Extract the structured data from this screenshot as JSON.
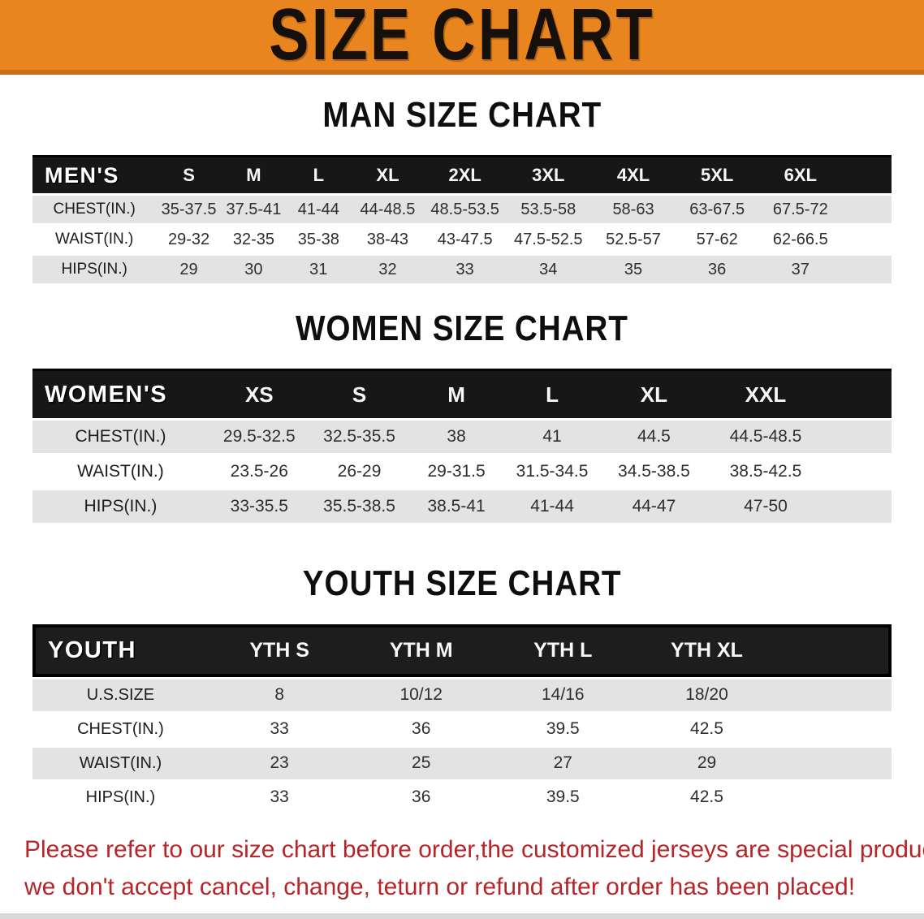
{
  "banner": {
    "title": "SIZE CHART",
    "bg_color": "#E9851F",
    "text_color": "#16100a"
  },
  "sections": {
    "man": {
      "heading": "MAN SIZE CHART"
    },
    "women": {
      "heading": "WOMEN SIZE CHART"
    },
    "youth": {
      "heading": "YOUTH SIZE CHART"
    }
  },
  "tables": {
    "men": {
      "header_label": "MEN'S",
      "sizes": [
        "S",
        "M",
        "L",
        "XL",
        "2XL",
        "3XL",
        "4XL",
        "5XL",
        "6XL"
      ],
      "rows": [
        {
          "label": "CHEST(IN.)",
          "values": [
            "35-37.5",
            "37.5-41",
            "41-44",
            "44-48.5",
            "48.5-53.5",
            "53.5-58",
            "58-63",
            "63-67.5",
            "67.5-72"
          ]
        },
        {
          "label": "WAIST(IN.)",
          "values": [
            "29-32",
            "32-35",
            "35-38",
            "38-43",
            "43-47.5",
            "47.5-52.5",
            "52.5-57",
            "57-62",
            "62-66.5"
          ]
        },
        {
          "label": "HIPS(IN.)",
          "values": [
            "29",
            "30",
            "31",
            "32",
            "33",
            "34",
            "35",
            "36",
            "37"
          ]
        }
      ]
    },
    "women": {
      "header_label": "WOMEN'S",
      "sizes": [
        "XS",
        "S",
        "M",
        "L",
        "XL",
        "XXL"
      ],
      "rows": [
        {
          "label": "CHEST(IN.)",
          "values": [
            "29.5-32.5",
            "32.5-35.5",
            "38",
            "41",
            "44.5",
            "44.5-48.5"
          ]
        },
        {
          "label": "WAIST(IN.)",
          "values": [
            "23.5-26",
            "26-29",
            "29-31.5",
            "31.5-34.5",
            "34.5-38.5",
            "38.5-42.5"
          ]
        },
        {
          "label": "HIPS(IN.)",
          "values": [
            "33-35.5",
            "35.5-38.5",
            "38.5-41",
            "41-44",
            "44-47",
            "47-50"
          ]
        }
      ]
    },
    "youth": {
      "header_label": "YOUTH",
      "sizes": [
        "YTH S",
        "YTH M",
        "YTH L",
        "YTH XL"
      ],
      "rows": [
        {
          "label": "U.S.SIZE",
          "values": [
            "8",
            "10/12",
            "14/16",
            "18/20"
          ]
        },
        {
          "label": "CHEST(IN.)",
          "values": [
            "33",
            "36",
            "39.5",
            "42.5"
          ]
        },
        {
          "label": "WAIST(IN.)",
          "values": [
            "23",
            "25",
            "27",
            "29"
          ]
        },
        {
          "label": "HIPS(IN.)",
          "values": [
            "33",
            "36",
            "39.5",
            "42.5"
          ]
        }
      ]
    }
  },
  "disclaimer": {
    "line1": "Please refer to our size chart before order,the customized jerseys are special products,",
    "line2": "we don't accept cancel, change, teturn or refund after order has been placed!",
    "color": "#B3262A"
  },
  "colors": {
    "banner_orange": "#E9851F",
    "header_black": "#171717",
    "row_gray": "#E3E3E3",
    "disclaimer_red": "#B3262A"
  }
}
